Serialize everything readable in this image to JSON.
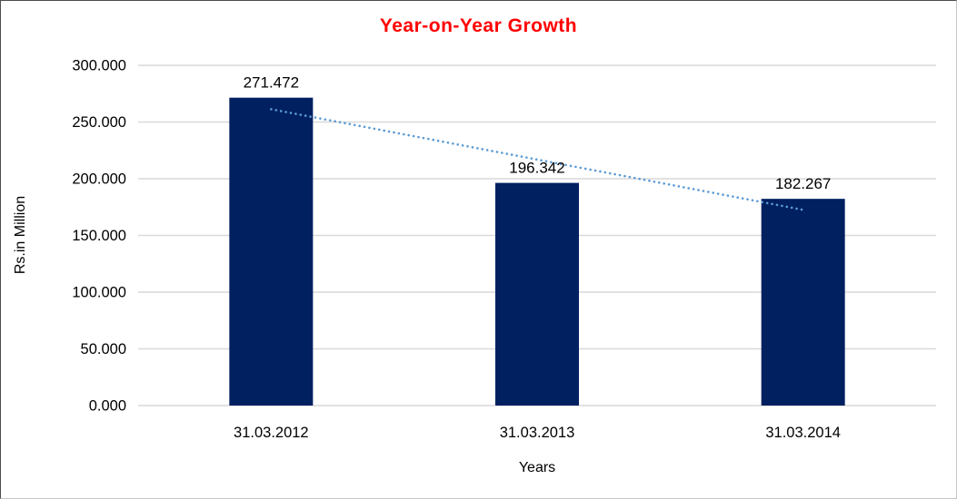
{
  "chart_data": {
    "type": "bar",
    "title": "Year-on-Year Growth",
    "title_color": "#FF0000",
    "xlabel": "Years",
    "ylabel": "Rs.in Million",
    "categories": [
      "31.03.2012",
      "31.03.2013",
      "31.03.2014"
    ],
    "values": [
      271.472,
      196.342,
      182.267
    ],
    "data_labels": [
      "271.472",
      "196.342",
      "182.267"
    ],
    "bar_color": "#002060",
    "ylim": [
      0,
      300
    ],
    "ytick_step": 50,
    "ytick_labels": [
      "0.000",
      "50.000",
      "100.000",
      "150.000",
      "200.000",
      "250.000",
      "300.000"
    ],
    "grid": "horizontal",
    "gridline_color": "#D9D9D9",
    "legend": "none",
    "trendline": {
      "type": "linear",
      "style": "dotted",
      "color": "#5B9BD5"
    }
  }
}
